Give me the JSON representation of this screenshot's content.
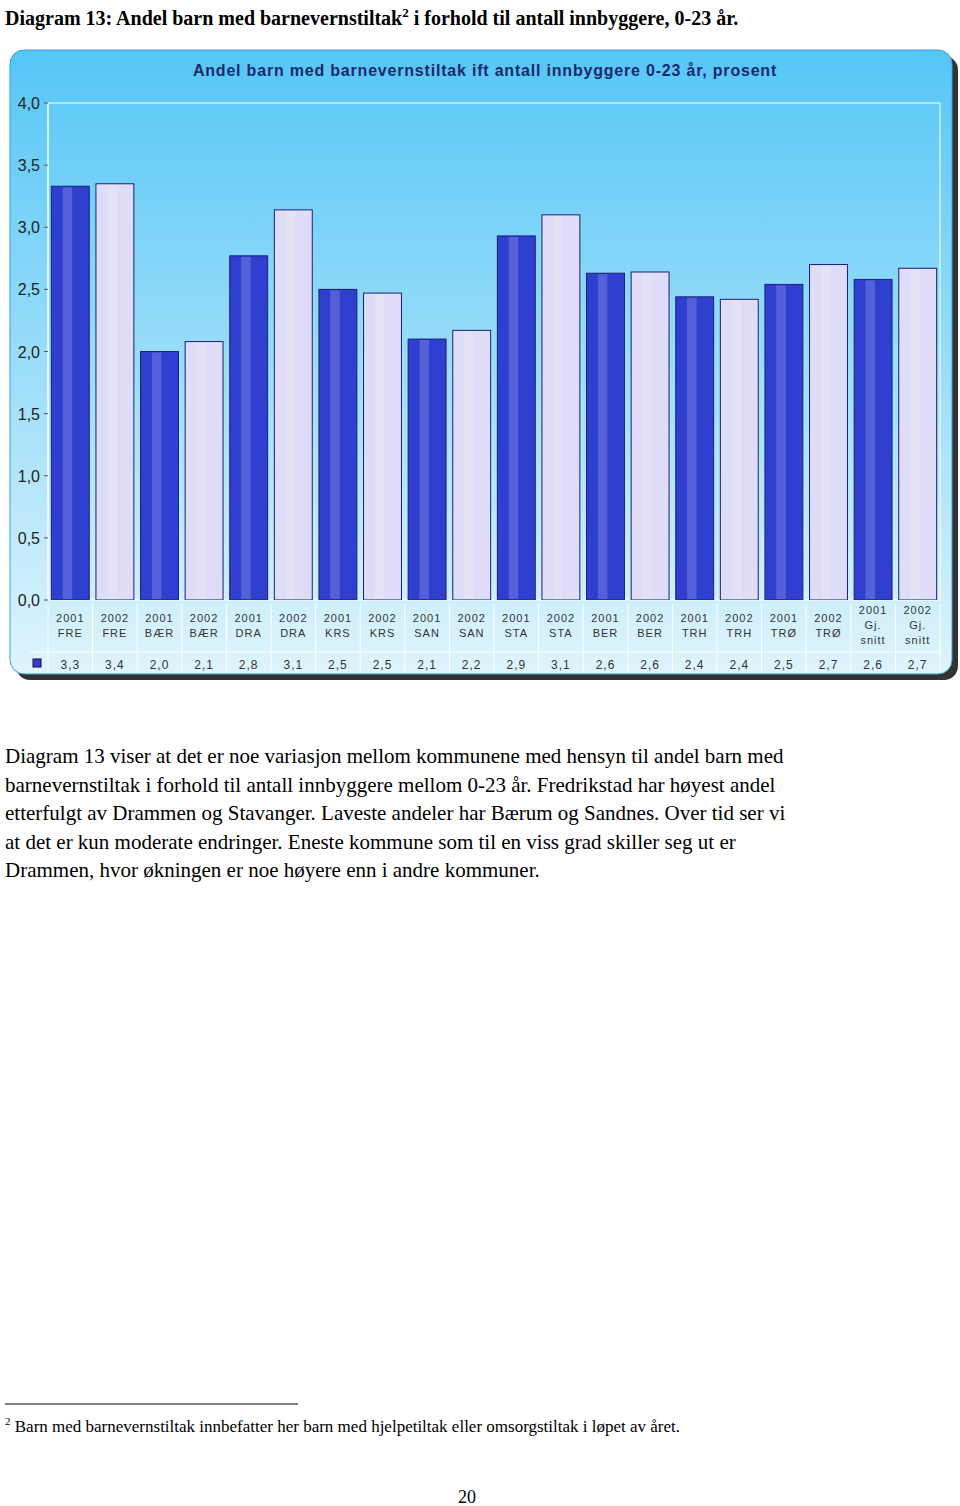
{
  "heading": {
    "text": "Diagram 13: Andel barn med barnevernstiltak",
    "sup": "2",
    "after": " i forhold til antall innbyggere, 0-23 år."
  },
  "chart_data": {
    "type": "bar",
    "title": "Andel barn med barnevernstiltak ift antall innbyggere 0-23 år, prosent",
    "categories": [
      "2001\nFRE",
      "2002\nFRE",
      "2001\nBÆR",
      "2002\nBÆR",
      "2001\nDRA",
      "2002\nDRA",
      "2001\nKRS",
      "2002\nKRS",
      "2001\nSAN",
      "2002\nSAN",
      "2001\nSTA",
      "2002\nSTA",
      "2001\nBER",
      "2002\nBER",
      "2001\nTRH",
      "2002\nTRH",
      "2001\nTRØ",
      "2002\nTRØ",
      "2001\nGj.\nsnitt",
      "2002\nGj.\nsnitt"
    ],
    "values": [
      3.33,
      3.35,
      2.0,
      2.08,
      2.77,
      3.14,
      2.5,
      2.47,
      2.1,
      2.17,
      2.93,
      3.1,
      2.63,
      2.64,
      2.44,
      2.42,
      2.54,
      2.7,
      2.58,
      2.67
    ],
    "value_labels": [
      "3,3",
      "3,4",
      "2,0",
      "2,1",
      "2,8",
      "3,1",
      "2,5",
      "2,5",
      "2,1",
      "2,2",
      "2,9",
      "3,1",
      "2,6",
      "2,6",
      "2,4",
      "2,4",
      "2,5",
      "2,7",
      "2,6",
      "2,7"
    ],
    "colors": [
      "#2f3fd0",
      "#dedcf6",
      "#2f3fd0",
      "#dedcf6",
      "#2f3fd0",
      "#dedcf6",
      "#2f3fd0",
      "#dedcf6",
      "#2f3fd0",
      "#dedcf6",
      "#2f3fd0",
      "#dedcf6",
      "#2f3fd0",
      "#dedcf6",
      "#2f3fd0",
      "#dedcf6",
      "#2f3fd0",
      "#dedcf6",
      "#2f3fd0",
      "#dedcf6"
    ],
    "ylim": [
      0,
      4
    ],
    "yticks": [
      {
        "value": 0,
        "label": "0,0"
      },
      {
        "value": 0.5,
        "label": "0,5"
      },
      {
        "value": 1,
        "label": "1,0"
      },
      {
        "value": 1.5,
        "label": "1,5"
      },
      {
        "value": 2,
        "label": "2,0"
      },
      {
        "value": 2.5,
        "label": "2,5"
      },
      {
        "value": 3,
        "label": "3,0"
      },
      {
        "value": 3.5,
        "label": "3,5"
      },
      {
        "value": 4,
        "label": "4,0"
      }
    ],
    "grid": false
  },
  "paragraph": [
    "Diagram 13 viser at det er noe variasjon mellom kommunene med hensyn til andel barn med",
    "barnevernstiltak i forhold til antall innbyggere mellom 0-23 år. Fredrikstad har høyest andel",
    "etterfulgt av Drammen og Stavanger. Laveste andeler har Bærum og Sandnes. Over tid ser vi",
    "at det er kun moderate endringer. Eneste kommune som til en viss grad skiller seg ut er",
    "Drammen, hvor økningen er noe høyere enn i andre kommuner."
  ],
  "footnote": {
    "sup": "2",
    "text": " Barn med barnevernstiltak innbefatter her barn med hjelpetiltak eller omsorgstiltak i løpet av året."
  },
  "page_number": "20"
}
